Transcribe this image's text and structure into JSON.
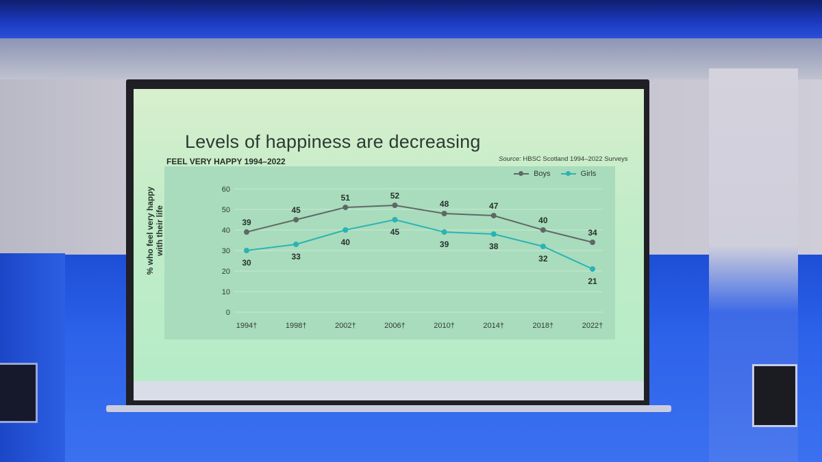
{
  "slide": {
    "title": "Levels of happiness are decreasing",
    "chart_title": "FEEL VERY HAPPY 1994–2022",
    "source_label": "Source:",
    "source_text": " HBSC Scotland 1994–2022 Surveys"
  },
  "colors": {
    "boys": "#5f6866",
    "girls": "#2cb2b4",
    "gridline": "#c7ead3"
  },
  "chart_data": {
    "type": "line",
    "title": "FEEL VERY HAPPY 1994–2022",
    "xlabel": "",
    "ylabel": "% who feel very happy with their life",
    "categories": [
      "1994†",
      "1998†",
      "2002†",
      "2006†",
      "2010†",
      "2014†",
      "2018†",
      "2022†"
    ],
    "ylim": [
      0,
      60
    ],
    "yticks": [
      0,
      10,
      20,
      30,
      40,
      50,
      60
    ],
    "grid": true,
    "legend_position": "top-right",
    "series": [
      {
        "name": "Boys",
        "values": [
          39,
          45,
          51,
          52,
          48,
          47,
          40,
          34
        ],
        "color": "#5f6866"
      },
      {
        "name": "Girls",
        "values": [
          30,
          33,
          40,
          45,
          39,
          38,
          32,
          21
        ],
        "color": "#2cb2b4"
      }
    ]
  }
}
